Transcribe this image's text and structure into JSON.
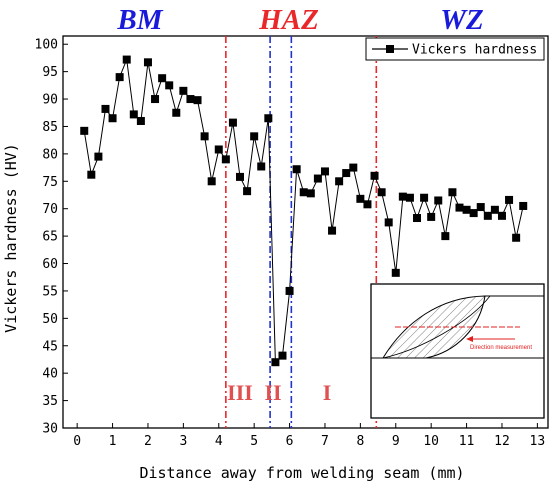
{
  "chart_data": {
    "type": "line",
    "xlabel": "Distance away from welding seam (mm)",
    "ylabel": "Vickers hardness (HV)",
    "xlim": [
      -0.4,
      13.3
    ],
    "ylim": [
      30,
      101.5
    ],
    "xticks": [
      0,
      1,
      2,
      3,
      4,
      5,
      6,
      7,
      8,
      9,
      10,
      11,
      12,
      13
    ],
    "yticks": [
      30,
      35,
      40,
      45,
      50,
      55,
      60,
      65,
      70,
      75,
      80,
      85,
      90,
      95,
      100
    ],
    "legend_position": "top-right",
    "series": [
      {
        "name": "Vickers hardness",
        "marker": "square",
        "color": "#000000",
        "x": [
          0.2,
          0.4,
          0.6,
          0.8,
          1.0,
          1.2,
          1.4,
          1.6,
          1.8,
          2.0,
          2.2,
          2.4,
          2.6,
          2.8,
          3.0,
          3.2,
          3.4,
          3.6,
          3.8,
          4.0,
          4.2,
          4.4,
          4.6,
          4.8,
          5.0,
          5.2,
          5.4,
          5.6,
          5.8,
          6.0,
          6.2,
          6.4,
          6.6,
          6.8,
          7.0,
          7.2,
          7.4,
          7.6,
          7.8,
          8.0,
          8.2,
          8.4,
          8.6,
          8.8,
          9.0,
          9.2,
          9.4,
          9.6,
          9.8,
          10.0,
          10.2,
          10.4,
          10.6,
          10.8,
          11.0,
          11.2,
          11.4,
          11.6,
          11.8,
          12.0,
          12.2,
          12.4,
          12.6
        ],
        "y": [
          84.2,
          76.2,
          79.5,
          88.2,
          86.5,
          94.0,
          97.2,
          87.2,
          86.0,
          96.7,
          90.0,
          93.8,
          92.5,
          87.5,
          91.5,
          90.0,
          89.8,
          83.2,
          75.0,
          80.8,
          79.0,
          85.7,
          75.8,
          73.2,
          83.2,
          77.7,
          86.5,
          42.0,
          43.2,
          55.0,
          77.2,
          73.0,
          72.8,
          75.5,
          76.8,
          66.0,
          75.0,
          76.5,
          77.5,
          71.8,
          70.8,
          76.0,
          73.0,
          67.5,
          58.3,
          72.2,
          72.0,
          68.3,
          72.0,
          68.5,
          71.5,
          65.0,
          73.0,
          70.2,
          69.8,
          69.2,
          70.3,
          68.7,
          69.8,
          68.7,
          71.6,
          64.7,
          70.5
        ]
      }
    ],
    "vlines": [
      {
        "x": 4.2,
        "color": "#e8282a",
        "style": "dash-dot"
      },
      {
        "x": 5.45,
        "color": "#2233cc",
        "style": "dash-dot"
      },
      {
        "x": 6.05,
        "color": "#2233cc",
        "style": "dash-dot"
      },
      {
        "x": 8.45,
        "color": "#e8282a",
        "style": "dash-dot"
      }
    ],
    "region_labels": [
      {
        "text": "BM",
        "color": "#1a1adb"
      },
      {
        "text": "HAZ",
        "color": "#e8282a"
      },
      {
        "text": "WZ",
        "color": "#1a1adb"
      }
    ],
    "zone_labels": [
      "III",
      "II",
      "I"
    ],
    "inset": {
      "annotation": "Direction measurement"
    }
  }
}
